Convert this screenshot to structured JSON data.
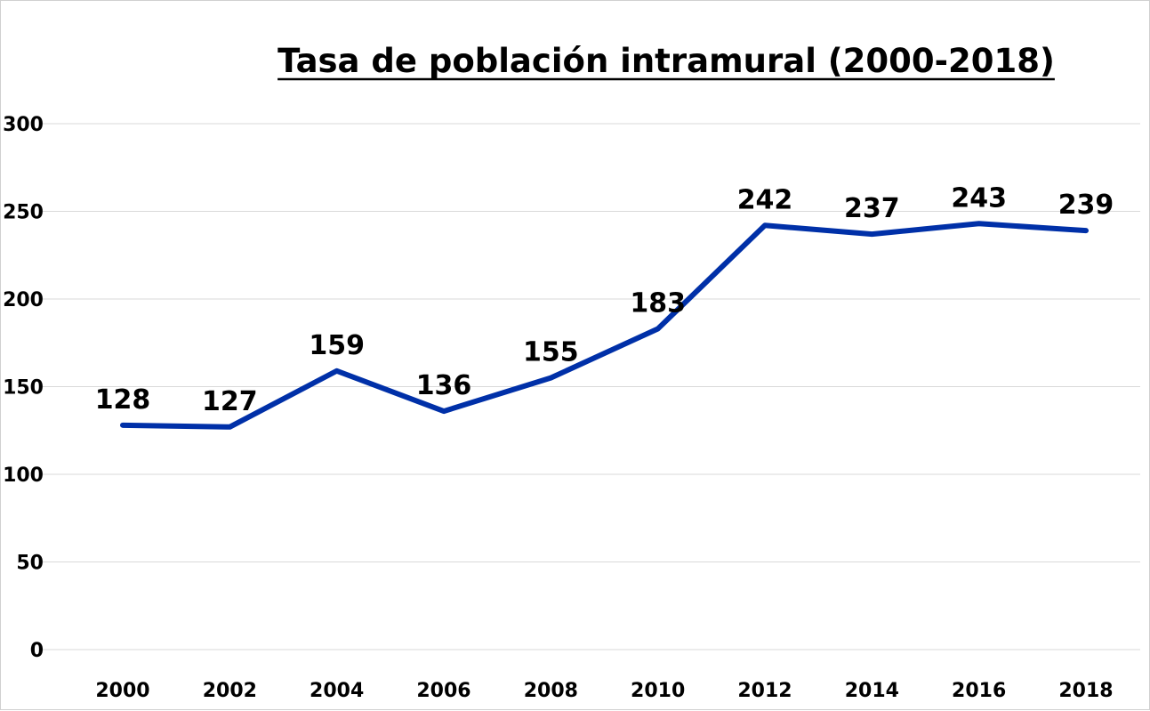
{
  "chart_data": {
    "type": "line",
    "title": "Tasa de población intramural (2000-2018)",
    "xlabel": "",
    "ylabel": "",
    "categories": [
      "2000",
      "2002",
      "2004",
      "2006",
      "2008",
      "2010",
      "2012",
      "2014",
      "2016",
      "2018"
    ],
    "values": [
      128,
      127,
      159,
      136,
      155,
      183,
      242,
      237,
      243,
      239
    ],
    "data_labels": [
      "128",
      "127",
      "159",
      "136",
      "155",
      "183",
      "242",
      "237",
      "243",
      "239"
    ],
    "ylim": [
      0,
      300
    ],
    "yticks": [
      "0",
      "50",
      "100",
      "150",
      "200",
      "250",
      "300"
    ],
    "grid": true,
    "legend": "none",
    "line_color": "#0030a8"
  }
}
